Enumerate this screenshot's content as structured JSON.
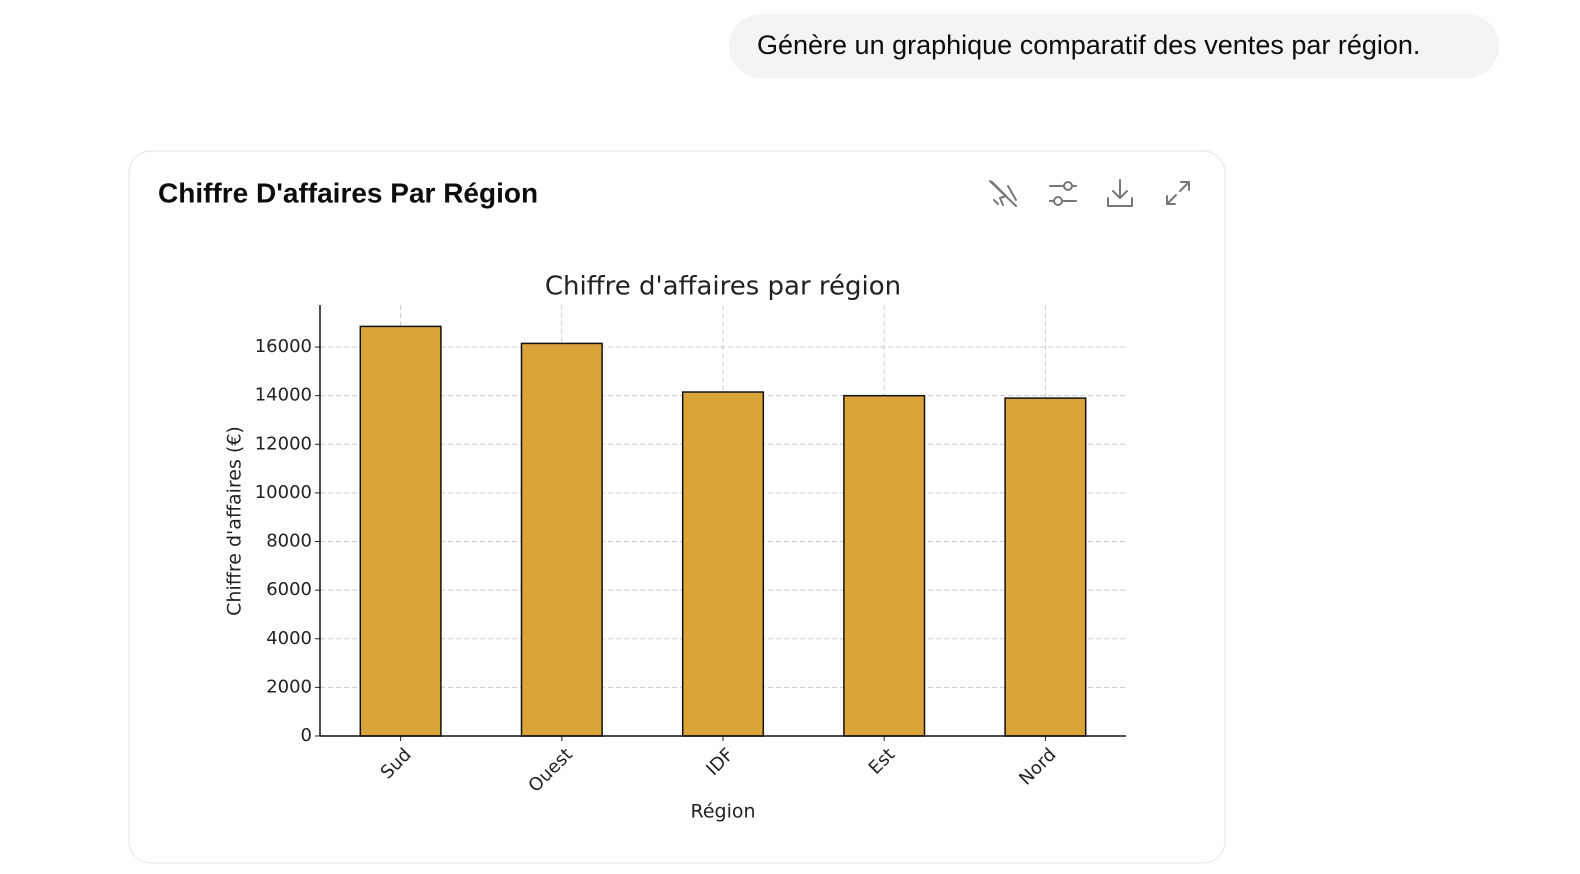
{
  "message": "Génère un graphique comparatif des ventes par région.",
  "card": {
    "title": "Chiffre D'affaires Par Région"
  },
  "chart_data": {
    "type": "bar",
    "title": "Chiffre d'affaires par région",
    "x_label": "Région",
    "y_label": "Chiffre d'affaires (€)",
    "categories": [
      "Sud",
      "Ouest",
      "IDF",
      "Est",
      "Nord"
    ],
    "values": [
      16850,
      16150,
      14150,
      14000,
      13900
    ],
    "color": "#dba43a",
    "ylim": [
      0,
      17730
    ],
    "yticks": [
      0,
      2000,
      4000,
      6000,
      8000,
      10000,
      12000,
      14000,
      16000
    ],
    "grid": true
  }
}
